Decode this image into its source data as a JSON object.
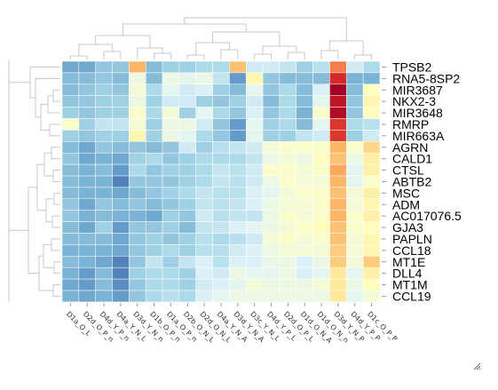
{
  "chart_data": {
    "type": "heatmap",
    "title": "",
    "columns": [
      "D1a_O_L",
      "D2d_O_P_n",
      "D4d_Y_P_n",
      "D4a_Y_N_L",
      "D3d_Y_N_n",
      "D1b_O_P_n",
      "D1a_O_P_n",
      "D2b_O_N_L",
      "D2d_O_N_L",
      "D4a_Y_N_A",
      "D3d_Y_N_A",
      "D3c_Y_N_L",
      "D4d_Y_P_L",
      "D2d_O_P_L",
      "D1d_O_N_A",
      "D1d_O_N_n",
      "D3d_Y_N_P",
      "D4d_Y_P_P",
      "D1c_O_P_P"
    ],
    "rows": [
      "TPSB2",
      "RNA5-8SP2",
      "MIR3687",
      "NKX2-3",
      "MIR3648",
      "RMRP",
      "MIR663A",
      "AGRN",
      "CALD1",
      "CTSL",
      "ABTB2",
      "MSC",
      "ADM",
      "AC017076.5",
      "GJA3",
      "PAPLN",
      "CCL18",
      "MT1E",
      "DLL4",
      "MT1M",
      "CCL19"
    ],
    "color_scale": [
      "#4575b4",
      "#74add1",
      "#abd9e9",
      "#e0f3f8",
      "#ffffbf",
      "#fee090",
      "#fdae61",
      "#f46d43",
      "#d73027",
      "#a50026"
    ],
    "values": [
      [
        -0.6,
        -0.6,
        -0.3,
        -0.3,
        1.6,
        -0.4,
        -0.2,
        -0.2,
        -0.1,
        -0.1,
        1.5,
        0.2,
        0.2,
        0.1,
        -0.2,
        0.0,
        2.0,
        0.2,
        -0.1
      ],
      [
        -0.4,
        -0.4,
        -0.3,
        -0.4,
        0.5,
        -0.4,
        0.5,
        0.4,
        0.5,
        0.1,
        -0.7,
        0.9,
        -0.3,
        -0.4,
        -0.4,
        -0.4,
        2.6,
        -0.5,
        -0.5
      ],
      [
        -0.4,
        -0.3,
        -0.2,
        -0.3,
        0.6,
        -0.1,
        0.4,
        0.2,
        0.3,
        -0.2,
        -0.4,
        0.4,
        -0.3,
        -0.1,
        -0.4,
        0.3,
        3.0,
        -0.4,
        0.8
      ],
      [
        -0.3,
        -0.3,
        -0.2,
        -0.2,
        0.5,
        -0.2,
        0.2,
        0.2,
        -0.2,
        -0.3,
        -0.2,
        0.2,
        -0.4,
        -0.1,
        -0.4,
        0.4,
        2.8,
        -0.3,
        0.9
      ],
      [
        -0.2,
        -0.3,
        -0.2,
        -0.2,
        0.7,
        -0.1,
        0.6,
        -0.2,
        0.4,
        -0.1,
        -0.3,
        0.3,
        -0.3,
        -0.1,
        -0.5,
        0.7,
        2.9,
        -0.3,
        0.8
      ],
      [
        0.7,
        -0.2,
        0.1,
        0.1,
        0.6,
        -0.2,
        0.5,
        0.5,
        0.2,
        -0.3,
        -0.7,
        0.4,
        -0.2,
        -0.1,
        -0.4,
        0.4,
        2.5,
        -0.1,
        0.0
      ],
      [
        -0.2,
        -0.3,
        -0.2,
        -0.2,
        0.9,
        -0.2,
        0.5,
        0.4,
        -0.1,
        -0.3,
        -0.7,
        0.4,
        -0.2,
        -0.2,
        0.1,
        0.2,
        2.5,
        -0.2,
        0.2
      ],
      [
        -0.4,
        -0.6,
        -0.3,
        -0.4,
        -0.3,
        -0.4,
        -0.3,
        0.2,
        -0.2,
        0.0,
        0.1,
        0.2,
        0.6,
        0.7,
        0.7,
        0.7,
        1.6,
        0.7,
        1.3
      ],
      [
        -0.3,
        -0.6,
        -0.5,
        -0.6,
        -0.2,
        -0.1,
        -0.3,
        -0.2,
        -0.1,
        -0.1,
        -0.1,
        0.1,
        0.5,
        0.6,
        0.5,
        0.8,
        1.5,
        0.5,
        1.0
      ],
      [
        -0.4,
        -0.5,
        -0.4,
        -0.7,
        -0.1,
        -0.3,
        -0.2,
        -0.2,
        -0.1,
        0.1,
        0.0,
        0.2,
        0.7,
        0.7,
        0.6,
        0.7,
        1.7,
        0.4,
        1.0
      ],
      [
        -0.4,
        -0.5,
        -0.5,
        -0.9,
        -0.3,
        -0.3,
        -0.3,
        -0.2,
        -0.1,
        0.1,
        0.0,
        0.2,
        0.5,
        0.7,
        0.6,
        0.6,
        1.6,
        0.4,
        0.7
      ],
      [
        -0.4,
        -0.5,
        -0.5,
        -0.6,
        -0.4,
        -0.3,
        -0.2,
        -0.1,
        0.1,
        0.0,
        0.0,
        0.3,
        0.4,
        0.6,
        0.7,
        0.7,
        1.5,
        0.6,
        1.0
      ],
      [
        -0.3,
        -0.6,
        -0.3,
        -0.4,
        -0.3,
        -0.4,
        -0.3,
        -0.2,
        0.1,
        0.0,
        0.1,
        0.3,
        0.5,
        0.6,
        0.6,
        0.7,
        1.6,
        0.6,
        0.9
      ],
      [
        -0.3,
        -0.5,
        -0.4,
        -0.5,
        -0.5,
        -0.6,
        -0.2,
        -0.3,
        0.2,
        0.0,
        0.1,
        0.1,
        0.5,
        0.7,
        0.6,
        0.7,
        1.6,
        0.7,
        1.0
      ],
      [
        -0.4,
        -0.6,
        -0.2,
        -0.7,
        -0.3,
        -0.3,
        -0.2,
        -0.4,
        0.1,
        0.1,
        0.3,
        0.4,
        0.5,
        0.6,
        0.7,
        0.8,
        1.5,
        0.7,
        0.8
      ],
      [
        -0.4,
        -0.4,
        -0.4,
        -0.6,
        -0.3,
        -0.2,
        -0.3,
        -0.2,
        0.0,
        -0.1,
        0.0,
        0.2,
        0.6,
        0.7,
        0.6,
        0.7,
        1.5,
        0.6,
        0.9
      ],
      [
        -0.5,
        -0.5,
        -0.5,
        -0.6,
        -0.3,
        -0.2,
        -0.1,
        -0.2,
        0.0,
        0.0,
        0.2,
        0.3,
        0.5,
        0.6,
        0.6,
        0.6,
        1.4,
        0.6,
        0.9
      ],
      [
        -0.4,
        -0.5,
        -0.6,
        -0.9,
        -0.3,
        0.1,
        -0.2,
        0.1,
        0.3,
        0.0,
        0.3,
        0.3,
        0.5,
        0.5,
        0.3,
        0.5,
        1.4,
        0.6,
        1.4
      ],
      [
        -0.5,
        -0.7,
        -0.4,
        -0.9,
        -0.2,
        -0.1,
        -0.1,
        -0.2,
        0.3,
        0.2,
        0.5,
        0.4,
        0.4,
        0.5,
        0.3,
        0.4,
        1.1,
        0.4,
        1.0
      ],
      [
        -0.6,
        -0.7,
        -0.4,
        -0.8,
        -0.3,
        -0.1,
        -0.1,
        -0.2,
        0.2,
        0.3,
        0.4,
        0.6,
        0.5,
        0.5,
        0.5,
        0.6,
        1.1,
        0.5,
        0.8
      ],
      [
        -0.5,
        -0.6,
        -0.5,
        -0.7,
        -0.3,
        -0.1,
        0.0,
        -0.1,
        0.3,
        0.4,
        0.5,
        0.5,
        0.5,
        0.5,
        0.5,
        0.5,
        1.1,
        0.4,
        0.6
      ]
    ]
  }
}
